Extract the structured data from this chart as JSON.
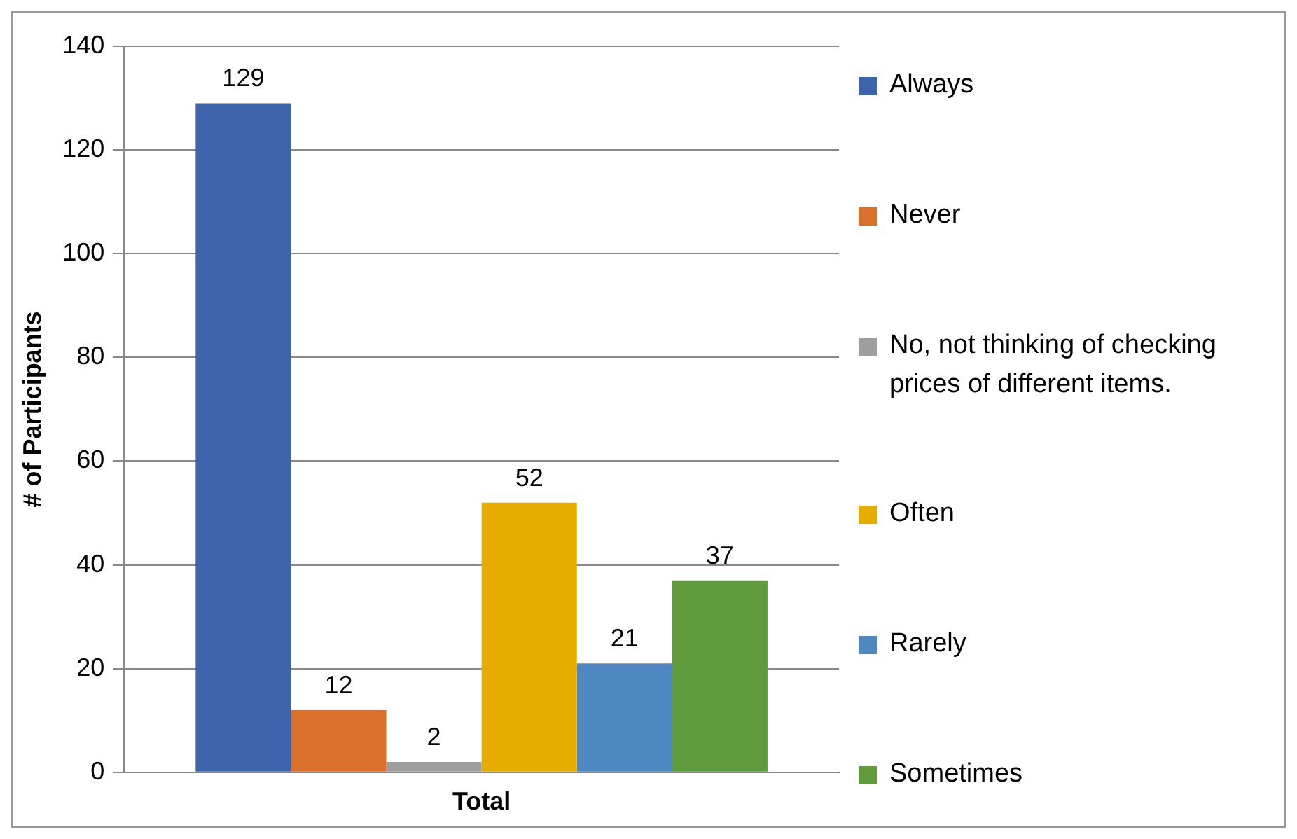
{
  "chart_data": {
    "type": "bar",
    "ylabel": "# of Participants",
    "categories": [
      "Total"
    ],
    "series": [
      {
        "name": "Always",
        "color": "#3d64ad",
        "values": [
          129
        ]
      },
      {
        "name": "Never",
        "color": "#d9702b",
        "values": [
          12
        ]
      },
      {
        "name": "No, not thinking of checking prices of different items.",
        "color": "#9e9e9e",
        "values": [
          2
        ]
      },
      {
        "name": "Often",
        "color": "#e6ac00",
        "values": [
          52
        ]
      },
      {
        "name": "Rarely",
        "color": "#4f88c0",
        "values": [
          21
        ]
      },
      {
        "name": "Sometimes",
        "color": "#5f9a3c",
        "values": [
          37
        ]
      }
    ],
    "ylim": [
      0,
      140
    ],
    "yticks": [
      0,
      20,
      40,
      60,
      80,
      100,
      120,
      140
    ],
    "grid": "y",
    "legend": "right",
    "data_labels": true
  }
}
